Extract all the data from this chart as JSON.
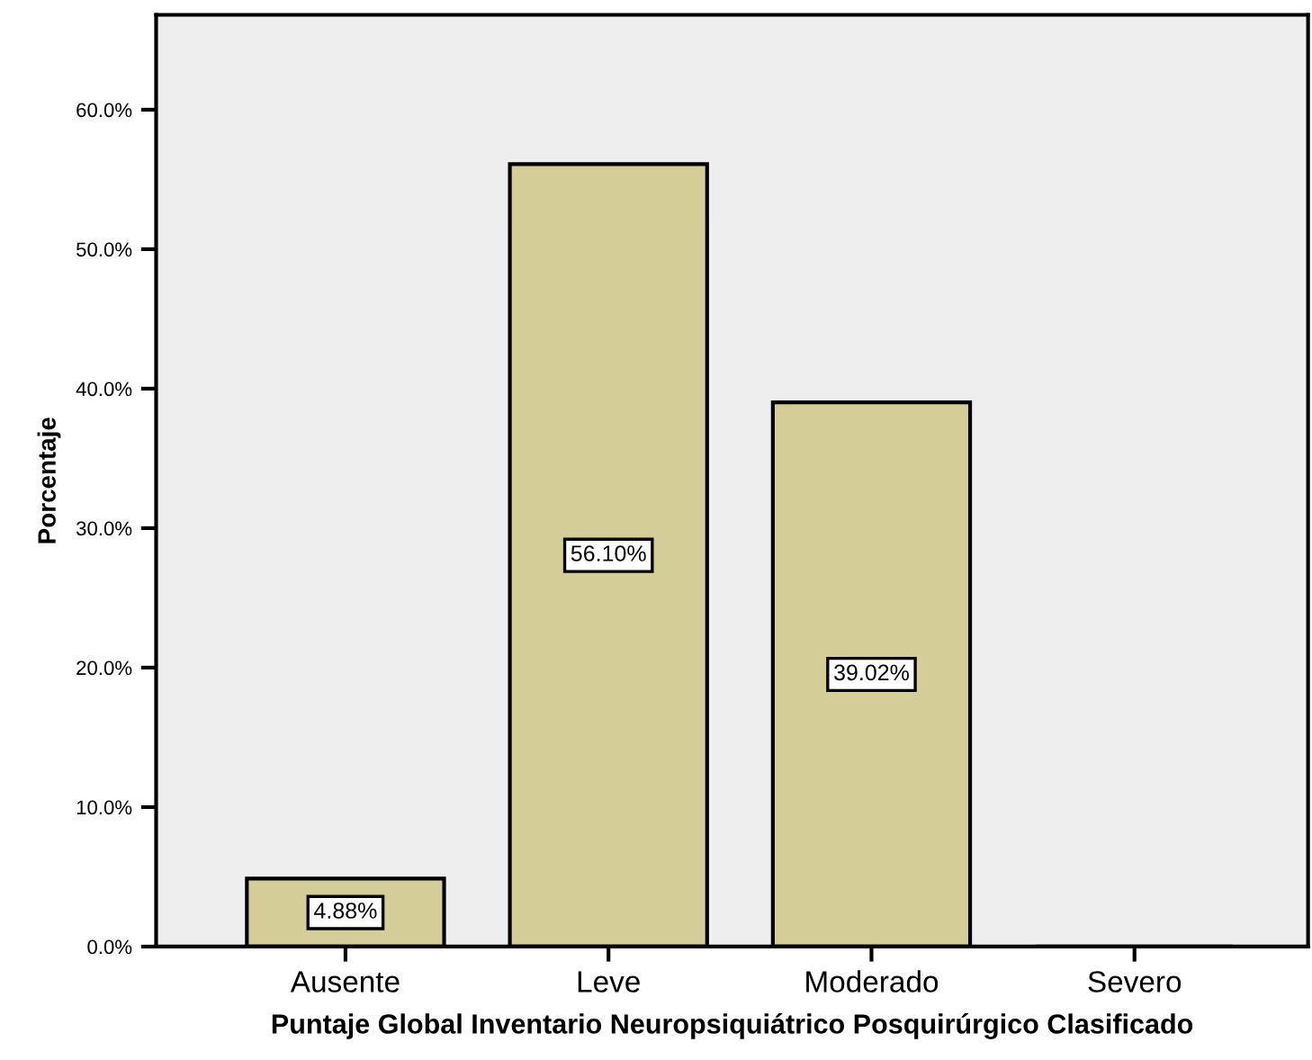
{
  "chart_data": {
    "type": "bar",
    "xlabel": "Puntaje Global Inventario Neuropsiquiátrico Posquirúrgico Clasificado",
    "ylabel": "Porcentaje",
    "categories": [
      "Ausente",
      "Leve",
      "Moderado",
      "Severo"
    ],
    "values": [
      4.88,
      56.1,
      39.02,
      0
    ],
    "value_labels": [
      "4.88%",
      "56.10%",
      "39.02%",
      null
    ],
    "color": "#d4cd98",
    "ylim": [
      0,
      66.8
    ],
    "yticks": [
      {
        "value": 0,
        "label": "0.0%"
      },
      {
        "value": 10,
        "label": "10.0%"
      },
      {
        "value": 20,
        "label": "20.0%"
      },
      {
        "value": 30,
        "label": "30.0%"
      },
      {
        "value": 40,
        "label": "40.0%"
      },
      {
        "value": 50,
        "label": "50.0%"
      },
      {
        "value": 60,
        "label": "60.0%"
      }
    ],
    "grid": false
  }
}
